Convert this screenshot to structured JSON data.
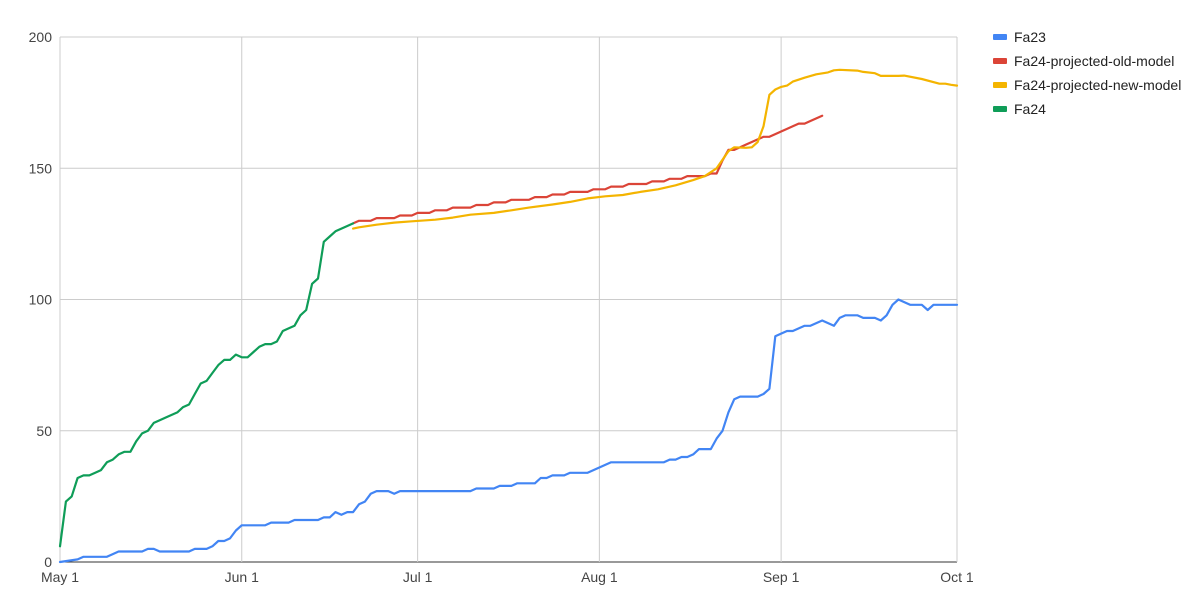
{
  "chart_data": {
    "type": "line",
    "title": "",
    "xlabel": "",
    "ylabel": "",
    "grid": true,
    "legend_position": "right",
    "x_axis": {
      "type": "date",
      "range": [
        "2024-05-01",
        "2024-10-01"
      ],
      "ticks": [
        {
          "date": "2024-05-01",
          "label": "May 1"
        },
        {
          "date": "2024-06-01",
          "label": "Jun 1"
        },
        {
          "date": "2024-07-01",
          "label": "Jul 1"
        },
        {
          "date": "2024-08-01",
          "label": "Aug 1"
        },
        {
          "date": "2024-09-01",
          "label": "Sep 1"
        },
        {
          "date": "2024-10-01",
          "label": "Oct 1"
        }
      ]
    },
    "y_axis": {
      "range": [
        0,
        200
      ],
      "ticks": [
        0,
        50,
        100,
        150,
        200
      ]
    },
    "series": [
      {
        "name": "Fa23",
        "color": "#4285f4",
        "points": [
          [
            "2024-05-01",
            0
          ],
          [
            "2024-05-04",
            1
          ],
          [
            "2024-05-05",
            2
          ],
          [
            "2024-05-09",
            2
          ],
          [
            "2024-05-10",
            3
          ],
          [
            "2024-05-11",
            4
          ],
          [
            "2024-05-15",
            4
          ],
          [
            "2024-05-16",
            5
          ],
          [
            "2024-05-17",
            5
          ],
          [
            "2024-05-18",
            4
          ],
          [
            "2024-05-23",
            4
          ],
          [
            "2024-05-24",
            5
          ],
          [
            "2024-05-26",
            5
          ],
          [
            "2024-05-27",
            6
          ],
          [
            "2024-05-28",
            8
          ],
          [
            "2024-05-29",
            8
          ],
          [
            "2024-05-30",
            9
          ],
          [
            "2024-05-31",
            12
          ],
          [
            "2024-06-01",
            14
          ],
          [
            "2024-06-05",
            14
          ],
          [
            "2024-06-06",
            15
          ],
          [
            "2024-06-09",
            15
          ],
          [
            "2024-06-10",
            16
          ],
          [
            "2024-06-14",
            16
          ],
          [
            "2024-06-15",
            17
          ],
          [
            "2024-06-16",
            17
          ],
          [
            "2024-06-17",
            19
          ],
          [
            "2024-06-18",
            18
          ],
          [
            "2024-06-19",
            19
          ],
          [
            "2024-06-20",
            19
          ],
          [
            "2024-06-21",
            22
          ],
          [
            "2024-06-22",
            23
          ],
          [
            "2024-06-23",
            26
          ],
          [
            "2024-06-24",
            27
          ],
          [
            "2024-06-26",
            27
          ],
          [
            "2024-06-27",
            26
          ],
          [
            "2024-06-28",
            27
          ],
          [
            "2024-07-10",
            27
          ],
          [
            "2024-07-11",
            28
          ],
          [
            "2024-07-14",
            28
          ],
          [
            "2024-07-15",
            29
          ],
          [
            "2024-07-17",
            29
          ],
          [
            "2024-07-18",
            30
          ],
          [
            "2024-07-21",
            30
          ],
          [
            "2024-07-22",
            32
          ],
          [
            "2024-07-23",
            32
          ],
          [
            "2024-07-24",
            33
          ],
          [
            "2024-07-26",
            33
          ],
          [
            "2024-07-27",
            34
          ],
          [
            "2024-07-30",
            34
          ],
          [
            "2024-08-02",
            37
          ],
          [
            "2024-08-03",
            38
          ],
          [
            "2024-08-12",
            38
          ],
          [
            "2024-08-13",
            39
          ],
          [
            "2024-08-14",
            39
          ],
          [
            "2024-08-15",
            40
          ],
          [
            "2024-08-16",
            40
          ],
          [
            "2024-08-17",
            41
          ],
          [
            "2024-08-18",
            43
          ],
          [
            "2024-08-20",
            43
          ],
          [
            "2024-08-21",
            47
          ],
          [
            "2024-08-22",
            50
          ],
          [
            "2024-08-23",
            57
          ],
          [
            "2024-08-24",
            62
          ],
          [
            "2024-08-25",
            63
          ],
          [
            "2024-08-28",
            63
          ],
          [
            "2024-08-29",
            64
          ],
          [
            "2024-08-30",
            66
          ],
          [
            "2024-08-31",
            86
          ],
          [
            "2024-09-01",
            87
          ],
          [
            "2024-09-02",
            88
          ],
          [
            "2024-09-03",
            88
          ],
          [
            "2024-09-04",
            89
          ],
          [
            "2024-09-05",
            90
          ],
          [
            "2024-09-06",
            90
          ],
          [
            "2024-09-07",
            91
          ],
          [
            "2024-09-08",
            92
          ],
          [
            "2024-09-10",
            90
          ],
          [
            "2024-09-11",
            93
          ],
          [
            "2024-09-12",
            94
          ],
          [
            "2024-09-14",
            94
          ],
          [
            "2024-09-15",
            93
          ],
          [
            "2024-09-17",
            93
          ],
          [
            "2024-09-18",
            92
          ],
          [
            "2024-09-19",
            94
          ],
          [
            "2024-09-20",
            98
          ],
          [
            "2024-09-21",
            100
          ],
          [
            "2024-09-22",
            99
          ],
          [
            "2024-09-23",
            98
          ],
          [
            "2024-09-25",
            98
          ],
          [
            "2024-09-26",
            96
          ],
          [
            "2024-09-27",
            98
          ],
          [
            "2024-10-01",
            98
          ]
        ]
      },
      {
        "name": "Fa24-projected-old-model",
        "color": "#db4437",
        "points": [
          [
            "2024-06-20",
            129
          ],
          [
            "2024-06-21",
            130
          ],
          [
            "2024-06-23",
            130
          ],
          [
            "2024-06-24",
            131
          ],
          [
            "2024-06-27",
            131
          ],
          [
            "2024-06-28",
            132
          ],
          [
            "2024-06-30",
            132
          ],
          [
            "2024-07-01",
            133
          ],
          [
            "2024-07-03",
            133
          ],
          [
            "2024-07-04",
            134
          ],
          [
            "2024-07-06",
            134
          ],
          [
            "2024-07-07",
            135
          ],
          [
            "2024-07-10",
            135
          ],
          [
            "2024-07-11",
            136
          ],
          [
            "2024-07-13",
            136
          ],
          [
            "2024-07-14",
            137
          ],
          [
            "2024-07-16",
            137
          ],
          [
            "2024-07-17",
            138
          ],
          [
            "2024-07-20",
            138
          ],
          [
            "2024-07-21",
            139
          ],
          [
            "2024-07-23",
            139
          ],
          [
            "2024-07-24",
            140
          ],
          [
            "2024-07-26",
            140
          ],
          [
            "2024-07-27",
            141
          ],
          [
            "2024-07-30",
            141
          ],
          [
            "2024-07-31",
            142
          ],
          [
            "2024-08-02",
            142
          ],
          [
            "2024-08-03",
            143
          ],
          [
            "2024-08-05",
            143
          ],
          [
            "2024-08-06",
            144
          ],
          [
            "2024-08-09",
            144
          ],
          [
            "2024-08-10",
            145
          ],
          [
            "2024-08-12",
            145
          ],
          [
            "2024-08-13",
            146
          ],
          [
            "2024-08-15",
            146
          ],
          [
            "2024-08-16",
            147
          ],
          [
            "2024-08-19",
            147
          ],
          [
            "2024-08-20",
            148
          ],
          [
            "2024-08-21",
            148
          ],
          [
            "2024-08-22",
            153
          ],
          [
            "2024-08-23",
            157
          ],
          [
            "2024-08-24",
            157
          ],
          [
            "2024-08-25",
            158
          ],
          [
            "2024-08-26",
            159
          ],
          [
            "2024-08-27",
            160
          ],
          [
            "2024-08-28",
            161
          ],
          [
            "2024-08-29",
            162
          ],
          [
            "2024-08-30",
            162
          ],
          [
            "2024-08-31",
            163
          ],
          [
            "2024-09-01",
            164
          ],
          [
            "2024-09-02",
            165
          ],
          [
            "2024-09-03",
            166
          ],
          [
            "2024-09-04",
            167
          ],
          [
            "2024-09-05",
            167
          ],
          [
            "2024-09-06",
            168
          ],
          [
            "2024-09-07",
            169
          ],
          [
            "2024-09-08",
            170
          ]
        ]
      },
      {
        "name": "Fa24-projected-new-model",
        "color": "#f4b400",
        "points": [
          [
            "2024-06-20",
            127
          ],
          [
            "2024-06-21",
            127.5
          ],
          [
            "2024-06-24",
            128.5
          ],
          [
            "2024-06-27",
            129.3
          ],
          [
            "2024-06-30",
            129.8
          ],
          [
            "2024-07-04",
            130.4
          ],
          [
            "2024-07-07",
            131.2
          ],
          [
            "2024-07-10",
            132.3
          ],
          [
            "2024-07-14",
            133
          ],
          [
            "2024-07-17",
            134
          ],
          [
            "2024-07-20",
            135
          ],
          [
            "2024-07-24",
            136.2
          ],
          [
            "2024-07-27",
            137.2
          ],
          [
            "2024-07-30",
            138.5
          ],
          [
            "2024-08-02",
            139.3
          ],
          [
            "2024-08-05",
            139.8
          ],
          [
            "2024-08-08",
            141
          ],
          [
            "2024-08-11",
            142
          ],
          [
            "2024-08-14",
            143.5
          ],
          [
            "2024-08-17",
            145.5
          ],
          [
            "2024-08-19",
            147
          ],
          [
            "2024-08-21",
            150
          ],
          [
            "2024-08-23",
            156.5
          ],
          [
            "2024-08-24",
            158
          ],
          [
            "2024-08-26",
            157.8
          ],
          [
            "2024-08-27",
            158
          ],
          [
            "2024-08-28",
            160
          ],
          [
            "2024-08-29",
            166
          ],
          [
            "2024-08-30",
            178
          ],
          [
            "2024-08-31",
            180
          ],
          [
            "2024-09-01",
            181
          ],
          [
            "2024-09-02",
            181.5
          ],
          [
            "2024-09-03",
            183
          ],
          [
            "2024-09-05",
            184.5
          ],
          [
            "2024-09-07",
            185.8
          ],
          [
            "2024-09-09",
            186.5
          ],
          [
            "2024-09-10",
            187.3
          ],
          [
            "2024-09-11",
            187.5
          ],
          [
            "2024-09-14",
            187.2
          ],
          [
            "2024-09-15",
            186.7
          ],
          [
            "2024-09-17",
            186.2
          ],
          [
            "2024-09-18",
            185.2
          ],
          [
            "2024-09-21",
            185.2
          ],
          [
            "2024-09-22",
            185.3
          ],
          [
            "2024-09-25",
            184
          ],
          [
            "2024-09-28",
            182.2
          ],
          [
            "2024-09-29",
            182.2
          ],
          [
            "2024-09-30",
            181.8
          ],
          [
            "2024-10-01",
            181.5
          ]
        ]
      },
      {
        "name": "Fa24",
        "color": "#0f9d58",
        "points": [
          [
            "2024-05-01",
            6
          ],
          [
            "2024-05-02",
            23
          ],
          [
            "2024-05-03",
            25
          ],
          [
            "2024-05-04",
            32
          ],
          [
            "2024-05-05",
            33
          ],
          [
            "2024-05-06",
            33
          ],
          [
            "2024-05-07",
            34
          ],
          [
            "2024-05-08",
            35
          ],
          [
            "2024-05-09",
            38
          ],
          [
            "2024-05-10",
            39
          ],
          [
            "2024-05-11",
            41
          ],
          [
            "2024-05-12",
            42
          ],
          [
            "2024-05-13",
            42
          ],
          [
            "2024-05-14",
            46
          ],
          [
            "2024-05-15",
            49
          ],
          [
            "2024-05-16",
            50
          ],
          [
            "2024-05-17",
            53
          ],
          [
            "2024-05-18",
            54
          ],
          [
            "2024-05-19",
            55
          ],
          [
            "2024-05-20",
            56
          ],
          [
            "2024-05-21",
            57
          ],
          [
            "2024-05-22",
            59
          ],
          [
            "2024-05-23",
            60
          ],
          [
            "2024-05-24",
            64
          ],
          [
            "2024-05-25",
            68
          ],
          [
            "2024-05-26",
            69
          ],
          [
            "2024-05-27",
            72
          ],
          [
            "2024-05-28",
            75
          ],
          [
            "2024-05-29",
            77
          ],
          [
            "2024-05-30",
            77
          ],
          [
            "2024-05-31",
            79
          ],
          [
            "2024-06-01",
            78
          ],
          [
            "2024-06-02",
            78
          ],
          [
            "2024-06-03",
            80
          ],
          [
            "2024-06-04",
            82
          ],
          [
            "2024-06-05",
            83
          ],
          [
            "2024-06-06",
            83
          ],
          [
            "2024-06-07",
            84
          ],
          [
            "2024-06-08",
            88
          ],
          [
            "2024-06-09",
            89
          ],
          [
            "2024-06-10",
            90
          ],
          [
            "2024-06-11",
            94
          ],
          [
            "2024-06-12",
            96
          ],
          [
            "2024-06-13",
            106
          ],
          [
            "2024-06-14",
            108
          ],
          [
            "2024-06-15",
            122
          ],
          [
            "2024-06-16",
            124
          ],
          [
            "2024-06-17",
            126
          ],
          [
            "2024-06-18",
            127
          ],
          [
            "2024-06-19",
            128
          ],
          [
            "2024-06-20",
            129
          ]
        ]
      }
    ]
  }
}
